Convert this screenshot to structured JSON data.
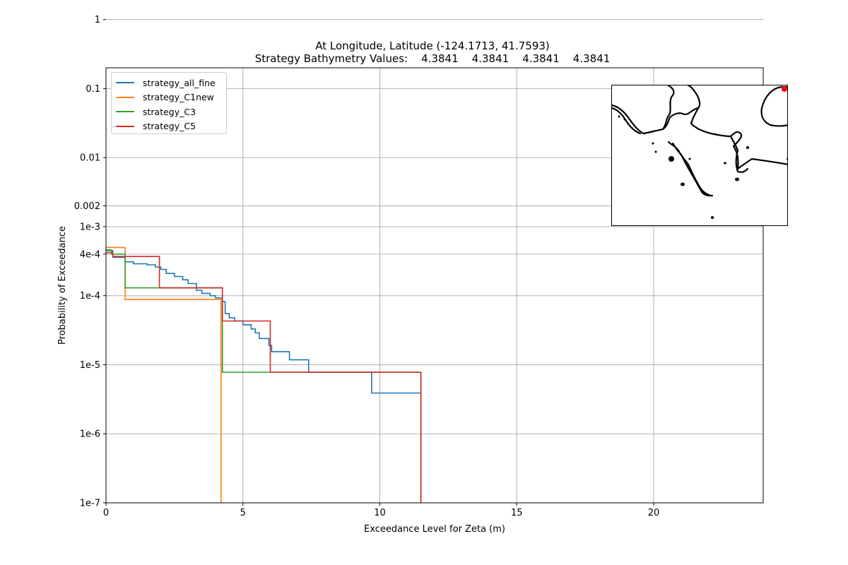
{
  "chart_data": {
    "type": "line",
    "title_line1": "At Longitude, Latitude (-124.1713,  41.7593)",
    "title_line2": "Strategy Bathymetry Values:    4.3841    4.3841    4.3841    4.3841",
    "xlabel": "Exceedance Level for Zeta (m)",
    "ylabel": "Probability of Exceedance",
    "xlim": [
      0,
      24
    ],
    "ylim": [
      1e-07,
      0.2
    ],
    "yscale": "log",
    "grid": true,
    "legend_position": "upper-left",
    "x_ticks": [
      {
        "v": 0,
        "label": "0"
      },
      {
        "v": 5,
        "label": "5"
      },
      {
        "v": 10,
        "label": "10"
      },
      {
        "v": 15,
        "label": "15"
      },
      {
        "v": 20,
        "label": "20"
      }
    ],
    "y_ticks": [
      {
        "v": 1,
        "label": "1"
      },
      {
        "v": 0.1,
        "label": "0.1"
      },
      {
        "v": 0.01,
        "label": "0.01"
      },
      {
        "v": 0.002,
        "label": "0.002"
      },
      {
        "v": 0.001,
        "label": "1e-3"
      },
      {
        "v": 0.0004,
        "label": "4e-4"
      },
      {
        "v": 0.0001,
        "label": "1e-4"
      },
      {
        "v": 1e-05,
        "label": "1e-5"
      },
      {
        "v": 1e-06,
        "label": "1e-6"
      },
      {
        "v": 1e-07,
        "label": "1e-7"
      }
    ],
    "series": [
      {
        "name": "strategy_all_fine",
        "color": "#1f77b4",
        "points": [
          [
            0,
            0.00045
          ],
          [
            0.25,
            0.00045
          ],
          [
            0.25,
            0.00036
          ],
          [
            0.7,
            0.00036
          ],
          [
            0.7,
            0.00031
          ],
          [
            1.0,
            0.00031
          ],
          [
            1.0,
            0.00029
          ],
          [
            1.5,
            0.00029
          ],
          [
            1.5,
            0.00028
          ],
          [
            1.8,
            0.00028
          ],
          [
            1.8,
            0.00026
          ],
          [
            2.0,
            0.00026
          ],
          [
            2.0,
            0.00024
          ],
          [
            2.2,
            0.00024
          ],
          [
            2.2,
            0.00021
          ],
          [
            2.5,
            0.00021
          ],
          [
            2.5,
            0.00019
          ],
          [
            2.8,
            0.00019
          ],
          [
            2.8,
            0.00017
          ],
          [
            3.0,
            0.00017
          ],
          [
            3.0,
            0.00015
          ],
          [
            3.3,
            0.00015
          ],
          [
            3.3,
            0.00012
          ],
          [
            3.5,
            0.00012
          ],
          [
            3.5,
            0.000108
          ],
          [
            3.8,
            0.000108
          ],
          [
            3.8,
            0.0001
          ],
          [
            4.0,
            0.0001
          ],
          [
            4.0,
            9.3e-05
          ],
          [
            4.25,
            9.3e-05
          ],
          [
            4.25,
            8.2e-05
          ],
          [
            4.35,
            8.2e-05
          ],
          [
            4.35,
            5.5e-05
          ],
          [
            4.5,
            5.5e-05
          ],
          [
            4.5,
            4.8e-05
          ],
          [
            4.7,
            4.8e-05
          ],
          [
            4.7,
            4.3e-05
          ],
          [
            5.0,
            4.3e-05
          ],
          [
            5.0,
            3.8e-05
          ],
          [
            5.3,
            3.8e-05
          ],
          [
            5.3,
            3.3e-05
          ],
          [
            5.45,
            3.3e-05
          ],
          [
            5.45,
            2.9e-05
          ],
          [
            5.6,
            2.9e-05
          ],
          [
            5.6,
            2.4e-05
          ],
          [
            5.95,
            2.4e-05
          ],
          [
            5.95,
            1.9e-05
          ],
          [
            6.05,
            1.9e-05
          ],
          [
            6.05,
            1.55e-05
          ],
          [
            6.7,
            1.55e-05
          ],
          [
            6.7,
            1.18e-05
          ],
          [
            7.4,
            1.18e-05
          ],
          [
            7.4,
            7.8e-06
          ],
          [
            9.7,
            7.8e-06
          ],
          [
            9.7,
            3.9e-06
          ],
          [
            11.5,
            3.9e-06
          ]
        ]
      },
      {
        "name": "strategy_C1new",
        "color": "#ff7f0e",
        "points": [
          [
            0,
            0.0005
          ],
          [
            0.7,
            0.0005
          ],
          [
            0.7,
            8.8e-05
          ],
          [
            4.2,
            8.8e-05
          ],
          [
            4.2,
            1e-07
          ]
        ]
      },
      {
        "name": "strategy_C3",
        "color": "#2ca02c",
        "points": [
          [
            0,
            0.00046
          ],
          [
            0.2,
            0.00046
          ],
          [
            0.2,
            0.0004
          ],
          [
            0.7,
            0.0004
          ],
          [
            0.7,
            0.00013
          ],
          [
            4.25,
            0.00013
          ],
          [
            4.25,
            7.8e-06
          ],
          [
            11.5,
            7.8e-06
          ],
          [
            11.5,
            1e-07
          ]
        ]
      },
      {
        "name": "strategy_C5",
        "color": "#d62728",
        "points": [
          [
            0,
            0.00042
          ],
          [
            0.25,
            0.00042
          ],
          [
            0.25,
            0.00037
          ],
          [
            1.95,
            0.00037
          ],
          [
            1.95,
            0.00013
          ],
          [
            4.25,
            0.00013
          ],
          [
            4.25,
            4.3e-05
          ],
          [
            6.0,
            4.3e-05
          ],
          [
            6.0,
            7.8e-06
          ],
          [
            11.5,
            7.8e-06
          ],
          [
            11.5,
            1e-07
          ]
        ]
      }
    ]
  },
  "inset_map": {
    "marker_color": "#ff0000",
    "coastline_color": "#000000"
  }
}
